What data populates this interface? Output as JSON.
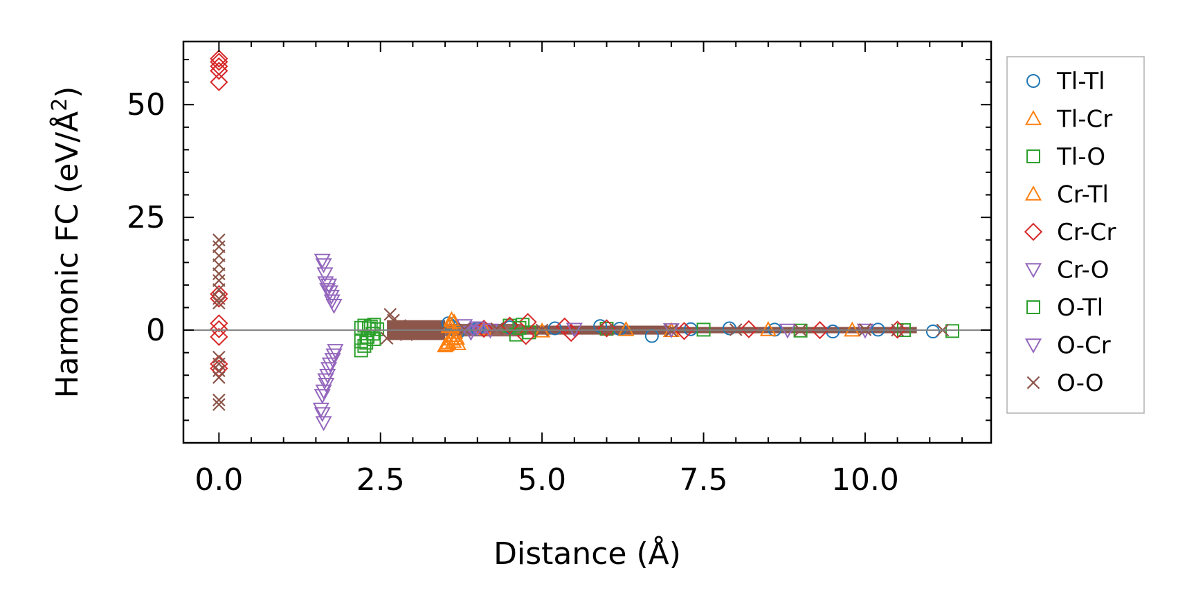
{
  "chart_data": {
    "type": "scatter",
    "title": "",
    "xlabel": "Distance (Å)",
    "ylabel_main": "Harmonic FC (eV/Å",
    "ylabel_sup": "2",
    "ylabel_close": ")",
    "xlim": [
      -0.55,
      11.95
    ],
    "ylim": [
      -25,
      64
    ],
    "xticks": [
      0.0,
      2.5,
      5.0,
      7.5,
      10.0
    ],
    "xtick_labels": [
      "0.0",
      "2.5",
      "5.0",
      "7.5",
      "10.0"
    ],
    "yticks": [
      0,
      25,
      50
    ],
    "ytick_labels": [
      "0",
      "25",
      "50"
    ],
    "zero_line": true,
    "legend_position": "outside-right",
    "series": [
      {
        "name": "Tl-Tl",
        "marker": "circle",
        "color": "#1f77b4",
        "points": [
          [
            3.55,
            1.5
          ],
          [
            3.6,
            0.8
          ],
          [
            3.7,
            -0.5
          ],
          [
            4.0,
            0.3
          ],
          [
            4.5,
            0.6
          ],
          [
            5.2,
            0.4
          ],
          [
            5.9,
            0.9
          ],
          [
            6.2,
            0.3
          ],
          [
            6.7,
            -1.3
          ],
          [
            7.3,
            0.2
          ],
          [
            7.9,
            0.4
          ],
          [
            8.6,
            0.1
          ],
          [
            9.5,
            -0.3
          ],
          [
            10.2,
            0.1
          ],
          [
            11.05,
            -0.3
          ]
        ]
      },
      {
        "name": "Tl-Cr",
        "marker": "triangle-up",
        "color": "#ff7f0e",
        "points": [
          [
            3.5,
            -3.5
          ],
          [
            3.55,
            -2.8
          ],
          [
            3.6,
            -2.0
          ],
          [
            3.62,
            -1.2
          ],
          [
            3.65,
            -0.5
          ],
          [
            3.58,
            1.2
          ],
          [
            3.6,
            2.3
          ],
          [
            3.7,
            -3.0
          ],
          [
            4.1,
            0.3
          ],
          [
            5.0,
            -0.2
          ],
          [
            6.3,
            0.1
          ],
          [
            7.0,
            -0.1
          ],
          [
            8.5,
            0.1
          ],
          [
            9.8,
            0.0
          ]
        ]
      },
      {
        "name": "Tl-O",
        "marker": "square",
        "color": "#2ca02c",
        "points": [
          [
            2.2,
            -4.5
          ],
          [
            2.2,
            -2.5
          ],
          [
            2.2,
            0.5
          ],
          [
            2.25,
            -3.5
          ],
          [
            2.25,
            1.0
          ],
          [
            2.3,
            -1.5
          ],
          [
            2.35,
            0.8
          ],
          [
            2.4,
            -2.0
          ],
          [
            2.4,
            1.2
          ],
          [
            2.45,
            0.2
          ],
          [
            4.5,
            1.0
          ],
          [
            4.6,
            -1.0
          ],
          [
            4.7,
            1.2
          ],
          [
            4.8,
            -0.5
          ],
          [
            6.0,
            0.3
          ],
          [
            7.5,
            0.1
          ],
          [
            9.0,
            -0.1
          ],
          [
            10.6,
            0.0
          ],
          [
            11.35,
            -0.2
          ]
        ]
      },
      {
        "name": "Cr-Tl",
        "marker": "triangle-up",
        "color": "#ff7f0e",
        "points": [
          [
            3.52,
            -3.2
          ],
          [
            3.63,
            -2.5
          ],
          [
            3.68,
            -1.8
          ],
          [
            3.56,
            0.8
          ],
          [
            3.64,
            1.8
          ]
        ]
      },
      {
        "name": "Cr-Cr",
        "marker": "diamond",
        "color": "#d62728",
        "points": [
          [
            0,
            55
          ],
          [
            0,
            57.5
          ],
          [
            0,
            58.5
          ],
          [
            0,
            59.5
          ],
          [
            0,
            60.2
          ],
          [
            0,
            8
          ],
          [
            0,
            7
          ],
          [
            0,
            1.5
          ],
          [
            0,
            0.2
          ],
          [
            0,
            -1.5
          ],
          [
            0,
            -7.5
          ],
          [
            0,
            -8.5
          ],
          [
            4.1,
            0.3
          ],
          [
            4.5,
            1.0
          ],
          [
            4.78,
            1.8
          ],
          [
            4.75,
            -1.3
          ],
          [
            5.35,
            0.8
          ],
          [
            5.45,
            -0.6
          ],
          [
            6.0,
            0.4
          ],
          [
            7.2,
            -0.2
          ],
          [
            8.2,
            0.2
          ],
          [
            9.3,
            0.0
          ],
          [
            10.5,
            0.1
          ]
        ]
      },
      {
        "name": "Cr-O",
        "marker": "triangle-down",
        "color": "#9467bd",
        "points": [
          [
            1.6,
            15.5
          ],
          [
            1.62,
            14.5
          ],
          [
            1.65,
            10.5
          ],
          [
            1.7,
            10.0
          ],
          [
            1.68,
            9.0
          ],
          [
            1.72,
            8.5
          ],
          [
            1.75,
            6.5
          ],
          [
            1.78,
            5.5
          ],
          [
            1.8,
            -4.5
          ],
          [
            1.78,
            -5.5
          ],
          [
            1.72,
            -7.5
          ],
          [
            1.7,
            -8.5
          ],
          [
            1.68,
            -10.0
          ],
          [
            1.65,
            -11.0
          ],
          [
            1.62,
            -13.5
          ],
          [
            1.6,
            -14.5
          ],
          [
            1.58,
            -17.5
          ],
          [
            1.6,
            -18.5
          ],
          [
            1.62,
            -20.5
          ]
        ]
      },
      {
        "name": "O-Tl",
        "marker": "square",
        "color": "#2ca02c",
        "points": [
          [
            2.28,
            -2.8
          ],
          [
            2.32,
            0.4
          ],
          [
            2.38,
            -0.8
          ],
          [
            4.65,
            0.5
          ]
        ]
      },
      {
        "name": "O-Cr",
        "marker": "triangle-down",
        "color": "#9467bd",
        "points": [
          [
            1.64,
            12.5
          ],
          [
            1.74,
            7.5
          ],
          [
            1.76,
            -6.5
          ],
          [
            1.66,
            -12.0
          ],
          [
            3.8,
            1.0
          ],
          [
            3.9,
            -0.5
          ],
          [
            4.0,
            0.5
          ],
          [
            4.2,
            0.0
          ],
          [
            5.5,
            0.2
          ],
          [
            7.0,
            0.1
          ],
          [
            8.8,
            0.0
          ],
          [
            10.0,
            0.0
          ]
        ]
      },
      {
        "name": "O-O",
        "marker": "x",
        "color": "#8c564b",
        "points": [
          [
            0,
            20
          ],
          [
            0,
            18.5
          ],
          [
            0,
            16.5
          ],
          [
            0,
            14.5
          ],
          [
            0,
            12.5
          ],
          [
            0,
            11
          ],
          [
            0,
            9
          ],
          [
            0,
            7
          ],
          [
            0,
            6
          ],
          [
            0,
            -6
          ],
          [
            0,
            -7.5
          ],
          [
            0,
            -9
          ],
          [
            0,
            -10.5
          ],
          [
            0,
            -15.5
          ],
          [
            0,
            -16.5
          ],
          [
            2.65,
            3.5
          ],
          [
            2.7,
            2.2
          ],
          [
            2.6,
            -1.8
          ],
          [
            2.8,
            1.0
          ],
          [
            2.9,
            -1.0
          ],
          [
            3.0,
            0.5
          ],
          [
            3.1,
            -0.5
          ],
          [
            3.3,
            0.8
          ],
          [
            3.4,
            -0.6
          ],
          [
            3.8,
            0.2
          ],
          [
            4.3,
            0.3
          ],
          [
            5.0,
            0.0
          ],
          [
            6.0,
            0.1
          ],
          [
            7.0,
            -0.1
          ],
          [
            8.0,
            0.1
          ],
          [
            9.0,
            0.0
          ],
          [
            10.0,
            0.1
          ],
          [
            10.5,
            0.0
          ],
          [
            11.2,
            0.0
          ]
        ]
      }
    ]
  }
}
